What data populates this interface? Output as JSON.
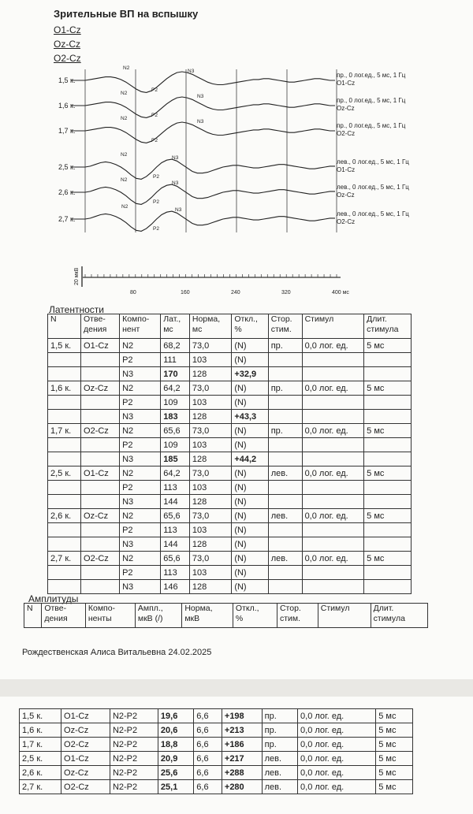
{
  "title": "Зрительные ВП на вспышку",
  "leads": [
    "O1-Cz",
    "Oz-Cz",
    "O2-Cz"
  ],
  "chart": {
    "left_labels": [
      "1,5 к.",
      "1,6 к.",
      "1,7 к.",
      "2,5 к.",
      "2,6 к.",
      "2,7 к."
    ],
    "right_labels": [
      [
        "пр., 0 лог.ед., 5 мс, 1 Гц",
        "O1-Cz"
      ],
      [
        "пр., 0 лог.ед., 5 мс, 1 Гц",
        "Oz-Cz"
      ],
      [
        "пр., 0 лог.ед., 5 мс, 1 Гц",
        "O2-Cz"
      ],
      [
        "лев., 0 лог.ед., 5 мс, 1 Гц",
        "O1-Cz"
      ],
      [
        "лев., 0 лог.ед., 5 мс, 1 Гц",
        "Oz-Cz"
      ],
      [
        "лев., 0 лог.ед., 5 мс, 1 Гц",
        "O2-Cz"
      ]
    ],
    "peak_labels": {
      "n2": "N2",
      "p2": "P2",
      "n3": "N3"
    },
    "x_ticks": [
      "80",
      "160",
      "240",
      "320",
      "400 мс"
    ],
    "scale_label": "20 мкВ"
  },
  "latency": {
    "title": "Латентности",
    "headers": [
      "N",
      "Отве-\nдения",
      "Компо-\nнент",
      "Лат.,\nмс",
      "Норма,\nмс",
      "Откл.,\n%",
      "Стор.\nстим.",
      "Стимул",
      "Длит.\nстимула"
    ],
    "rows": [
      [
        "1,5 к.",
        "O1-Cz",
        "N2",
        "68,2",
        "73,0",
        "(N)",
        "пр.",
        "0,0 лог. ед.",
        "5 мс"
      ],
      [
        "",
        "",
        "P2",
        "111",
        "103",
        "(N)",
        "",
        "",
        ""
      ],
      [
        "",
        "",
        "N3",
        "170",
        "128",
        "+32,9",
        "",
        "",
        ""
      ],
      [
        "1,6 к.",
        "Oz-Cz",
        "N2",
        "64,2",
        "73,0",
        "(N)",
        "пр.",
        "0,0 лог. ед.",
        "5 мс"
      ],
      [
        "",
        "",
        "P2",
        "109",
        "103",
        "(N)",
        "",
        "",
        ""
      ],
      [
        "",
        "",
        "N3",
        "183",
        "128",
        "+43,3",
        "",
        "",
        ""
      ],
      [
        "1,7 к.",
        "O2-Cz",
        "N2",
        "65,6",
        "73,0",
        "(N)",
        "пр.",
        "0,0 лог. ед.",
        "5 мс"
      ],
      [
        "",
        "",
        "P2",
        "109",
        "103",
        "(N)",
        "",
        "",
        ""
      ],
      [
        "",
        "",
        "N3",
        "185",
        "128",
        "+44,2",
        "",
        "",
        ""
      ],
      [
        "2,5 к.",
        "O1-Cz",
        "N2",
        "64,2",
        "73,0",
        "(N)",
        "лев.",
        "0,0 лог. ед.",
        "5 мс"
      ],
      [
        "",
        "",
        "P2",
        "113",
        "103",
        "(N)",
        "",
        "",
        ""
      ],
      [
        "",
        "",
        "N3",
        "144",
        "128",
        "(N)",
        "",
        "",
        ""
      ],
      [
        "2,6 к.",
        "Oz-Cz",
        "N2",
        "65,6",
        "73,0",
        "(N)",
        "лев.",
        "0,0 лог. ед.",
        "5 мс"
      ],
      [
        "",
        "",
        "P2",
        "113",
        "103",
        "(N)",
        "",
        "",
        ""
      ],
      [
        "",
        "",
        "N3",
        "144",
        "128",
        "(N)",
        "",
        "",
        ""
      ],
      [
        "2,7 к.",
        "O2-Cz",
        "N2",
        "65,6",
        "73,0",
        "(N)",
        "лев.",
        "0,0 лог. ед.",
        "5 мс"
      ],
      [
        "",
        "",
        "P2",
        "113",
        "103",
        "(N)",
        "",
        "",
        ""
      ],
      [
        "",
        "",
        "N3",
        "146",
        "128",
        "(N)",
        "",
        "",
        ""
      ]
    ]
  },
  "amplitude": {
    "title": "Амплитуды",
    "headers": [
      "N",
      "Отве-\nдения",
      "Компо-\nненты",
      "Ампл.,\nмкВ (/)",
      "Норма,\nмкВ",
      "Откл.,\n%",
      "Стор.\nстим.",
      "Стимул",
      "Длит.\nстимула"
    ],
    "rows": [
      [
        "1,5 к.",
        "O1-Cz",
        "N2-P2",
        "19,6",
        "6,6",
        "+198",
        "пр.",
        "0,0 лог. ед.",
        "5 мс"
      ],
      [
        "1,6 к.",
        "Oz-Cz",
        "N2-P2",
        "20,6",
        "6,6",
        "+213",
        "пр.",
        "0,0 лог. ед.",
        "5 мс"
      ],
      [
        "1,7 к.",
        "O2-Cz",
        "N2-P2",
        "18,8",
        "6,6",
        "+186",
        "пр.",
        "0,0 лог. ед.",
        "5 мс"
      ],
      [
        "2,5 к.",
        "O1-Cz",
        "N2-P2",
        "20,9",
        "6,6",
        "+217",
        "лев.",
        "0,0 лог. ед.",
        "5 мс"
      ],
      [
        "2,6 к.",
        "Oz-Cz",
        "N2-P2",
        "25,6",
        "6,6",
        "+288",
        "лев.",
        "0,0 лог. ед.",
        "5 мс"
      ],
      [
        "2,7 к.",
        "O2-Cz",
        "N2-P2",
        "25,1",
        "6,6",
        "+280",
        "лев.",
        "0,0 лог. ед.",
        "5 мс"
      ]
    ]
  },
  "footer": "Рождественская Алиса Витальевна 24.02.2025"
}
